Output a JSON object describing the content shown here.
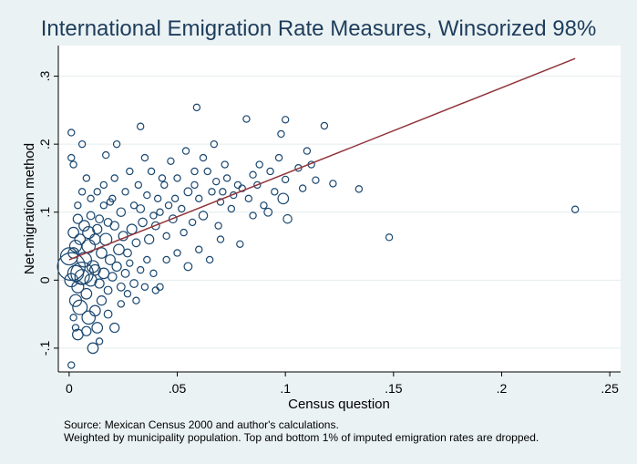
{
  "chart_data": {
    "type": "scatter",
    "title": "International Emigration Rate Measures, Winsorized 98%",
    "xlabel": "Census question",
    "ylabel": "Net-migration method",
    "xlim": [
      -0.005,
      0.255
    ],
    "ylim": [
      -0.135,
      0.345
    ],
    "xticks": [
      0,
      0.05,
      0.1,
      0.15,
      0.2,
      0.25
    ],
    "xtick_labels": [
      "0",
      ".05",
      ".1",
      ".15",
      ".2",
      ".25"
    ],
    "yticks": [
      -0.1,
      0,
      0.1,
      0.2,
      0.3
    ],
    "ytick_labels": [
      "-.1",
      "0",
      ".1",
      ".2",
      ".3"
    ],
    "grid": "horizontal",
    "legend": "none",
    "marker": "hollow circle, size weighted by municipality population",
    "marker_color": "#1a476f",
    "fit_line": {
      "type": "linear",
      "color": "#90353b",
      "x": [
        0,
        0.234
      ],
      "y": [
        0.03,
        0.326
      ]
    },
    "notes": [
      "Source: Mexican Census 2000 and author's calculations.",
      "Weighted by municipality population. Top and bottom 1% of imputed emigration rates are dropped."
    ],
    "points": [
      [
        0.234,
        0.104,
        1
      ],
      [
        0.148,
        0.063,
        1
      ],
      [
        0.134,
        0.134,
        1
      ],
      [
        0.122,
        0.142,
        1
      ],
      [
        0.118,
        0.227,
        1
      ],
      [
        0.1,
        0.236,
        1
      ],
      [
        0.098,
        0.215,
        1
      ],
      [
        0.082,
        0.237,
        1
      ],
      [
        0.059,
        0.254,
        1
      ],
      [
        0.054,
        0.19,
        1
      ],
      [
        0.033,
        0.226,
        1
      ],
      [
        0.022,
        0.2,
        1
      ],
      [
        0.017,
        0.184,
        1
      ],
      [
        0.006,
        0.2,
        1
      ],
      [
        0.001,
        0.217,
        1
      ],
      [
        0.001,
        0.18,
        1
      ],
      [
        0.002,
        0.17,
        1
      ],
      [
        0.11,
        0.19,
        1
      ],
      [
        0.106,
        0.165,
        1
      ],
      [
        0.114,
        0.147,
        1
      ],
      [
        0.108,
        0.135,
        1
      ],
      [
        0.112,
        0.17,
        1
      ],
      [
        0.1,
        0.148,
        1
      ],
      [
        0.095,
        0.13,
        1
      ],
      [
        0.088,
        0.17,
        1
      ],
      [
        0.085,
        0.155,
        1
      ],
      [
        0.09,
        0.11,
        1
      ],
      [
        0.101,
        0.09,
        1.3
      ],
      [
        0.099,
        0.12,
        1.6
      ],
      [
        0.092,
        0.1,
        1.2
      ],
      [
        0.085,
        0.095,
        1
      ],
      [
        0.079,
        0.053,
        1
      ],
      [
        0.07,
        0.06,
        1
      ],
      [
        0.069,
        0.08,
        1
      ],
      [
        0.075,
        0.105,
        1
      ],
      [
        0.078,
        0.14,
        1
      ],
      [
        0.072,
        0.17,
        1
      ],
      [
        0.067,
        0.2,
        1
      ],
      [
        0.062,
        0.18,
        1
      ],
      [
        0.058,
        0.16,
        1
      ],
      [
        0.055,
        0.13,
        1.2
      ],
      [
        0.05,
        0.15,
        1
      ],
      [
        0.047,
        0.175,
        1
      ],
      [
        0.044,
        0.14,
        1
      ],
      [
        0.041,
        0.12,
        1
      ],
      [
        0.038,
        0.16,
        1
      ],
      [
        0.035,
        0.18,
        1
      ],
      [
        0.032,
        0.14,
        1
      ],
      [
        0.03,
        0.11,
        1
      ],
      [
        0.028,
        0.16,
        1
      ],
      [
        0.026,
        0.13,
        1
      ],
      [
        0.024,
        0.1,
        1.3
      ],
      [
        0.021,
        0.15,
        1
      ],
      [
        0.019,
        0.115,
        1
      ],
      [
        0.016,
        0.14,
        1
      ],
      [
        0.013,
        0.13,
        1
      ],
      [
        0.01,
        0.12,
        1
      ],
      [
        0.008,
        0.15,
        1
      ],
      [
        0.006,
        0.13,
        1
      ],
      [
        0.004,
        0.11,
        1
      ],
      [
        0.062,
        0.095,
        1.3
      ],
      [
        0.06,
        0.12,
        1
      ],
      [
        0.057,
        0.085,
        1
      ],
      [
        0.053,
        0.07,
        1
      ],
      [
        0.048,
        0.09,
        1.2
      ],
      [
        0.045,
        0.065,
        1
      ],
      [
        0.042,
        0.1,
        1
      ],
      [
        0.04,
        0.08,
        1.2
      ],
      [
        0.037,
        0.06,
        1.4
      ],
      [
        0.034,
        0.085,
        1.3
      ],
      [
        0.031,
        0.055,
        1.2
      ],
      [
        0.029,
        0.075,
        1.5
      ],
      [
        0.027,
        0.04,
        1.2
      ],
      [
        0.025,
        0.065,
        1.4
      ],
      [
        0.023,
        0.045,
        1.6
      ],
      [
        0.021,
        0.08,
        1.3
      ],
      [
        0.019,
        0.03,
        1.5
      ],
      [
        0.017,
        0.06,
        1.8
      ],
      [
        0.015,
        0.04,
        1.6
      ],
      [
        0.013,
        0.075,
        1.4
      ],
      [
        0.011,
        0.02,
        1.8
      ],
      [
        0.009,
        0.05,
        2.0
      ],
      [
        0.007,
        0.03,
        2.2
      ],
      [
        0.005,
        0.06,
        1.6
      ],
      [
        0.003,
        0.01,
        2.4
      ],
      [
        0.002,
        0.04,
        1.6
      ],
      [
        0.001,
        0.0,
        2.0
      ],
      [
        0.004,
        -0.01,
        1.8
      ],
      [
        0.006,
        0.005,
        2.2
      ],
      [
        0.008,
        -0.02,
        1.6
      ],
      [
        0.01,
        0.0,
        1.8
      ],
      [
        0.012,
        0.015,
        1.6
      ],
      [
        0.014,
        -0.005,
        1.4
      ],
      [
        0.016,
        0.01,
        1.6
      ],
      [
        0.018,
        -0.015,
        1.2
      ],
      [
        0.02,
        0.005,
        1.3
      ],
      [
        0.022,
        0.02,
        1.4
      ],
      [
        0.024,
        -0.01,
        1.2
      ],
      [
        0.026,
        0.01,
        1.2
      ],
      [
        0.028,
        0.025,
        1
      ],
      [
        0.03,
        -0.005,
        1.2
      ],
      [
        0.033,
        0.015,
        1
      ],
      [
        0.036,
        0.03,
        1
      ],
      [
        0.039,
        0.01,
        1
      ],
      [
        0.042,
        -0.01,
        1
      ],
      [
        0.045,
        0.03,
        1
      ],
      [
        0.05,
        0.04,
        1
      ],
      [
        0.055,
        0.02,
        1.2
      ],
      [
        0.06,
        0.045,
        1
      ],
      [
        0.065,
        0.03,
        1
      ],
      [
        0.005,
        -0.04,
        2.2
      ],
      [
        0.009,
        -0.055,
        2.0
      ],
      [
        0.003,
        -0.03,
        1.8
      ],
      [
        0.012,
        -0.045,
        1.6
      ],
      [
        0.015,
        -0.03,
        1.4
      ],
      [
        0.018,
        -0.05,
        1.2
      ],
      [
        0.021,
        -0.07,
        1.4
      ],
      [
        0.024,
        -0.035,
        1
      ],
      [
        0.013,
        -0.07,
        1.6
      ],
      [
        0.008,
        -0.075,
        1.4
      ],
      [
        0.004,
        -0.08,
        1.6
      ],
      [
        0.011,
        -0.1,
        1.6
      ],
      [
        0.014,
        -0.09,
        1
      ],
      [
        0.001,
        -0.125,
        1
      ],
      [
        0.003,
        -0.07,
        1
      ],
      [
        0.002,
        -0.055,
        1
      ],
      [
        0.031,
        -0.03,
        1
      ],
      [
        0.027,
        -0.02,
        1
      ],
      [
        0.035,
        -0.01,
        1
      ],
      [
        0.04,
        -0.015,
        1
      ],
      [
        0.002,
        0.07,
        1.6
      ],
      [
        0.004,
        0.09,
        1.4
      ],
      [
        0.007,
        0.08,
        1.6
      ],
      [
        0.01,
        0.095,
        1.2
      ],
      [
        0.012,
        0.06,
        1.6
      ],
      [
        0.003,
        0.05,
        1.8
      ],
      [
        0.001,
        0.02,
        4.2
      ],
      [
        0.0,
        0.035,
        2.6
      ],
      [
        0.006,
        0.01,
        3.4
      ],
      [
        0.014,
        0.09,
        1.2
      ],
      [
        0.016,
        0.11,
        1
      ],
      [
        0.018,
        0.085,
        1.2
      ],
      [
        0.02,
        0.12,
        1
      ],
      [
        0.009,
        0.07,
        1.8
      ],
      [
        0.066,
        0.13,
        1
      ],
      [
        0.07,
        0.115,
        1
      ],
      [
        0.073,
        0.15,
        1
      ],
      [
        0.076,
        0.125,
        1
      ],
      [
        0.08,
        0.135,
        1
      ],
      [
        0.083,
        0.12,
        1
      ],
      [
        0.087,
        0.14,
        1
      ],
      [
        0.093,
        0.16,
        1
      ],
      [
        0.097,
        0.18,
        1
      ],
      [
        0.052,
        0.105,
        1
      ],
      [
        0.049,
        0.12,
        1
      ],
      [
        0.046,
        0.11,
        1
      ],
      [
        0.043,
        0.15,
        1
      ],
      [
        0.039,
        0.095,
        1
      ],
      [
        0.036,
        0.125,
        1
      ],
      [
        0.033,
        0.105,
        1.2
      ],
      [
        0.058,
        0.14,
        1
      ],
      [
        0.064,
        0.16,
        1
      ],
      [
        0.068,
        0.145,
        1
      ],
      [
        0.071,
        0.13,
        1
      ]
    ]
  }
}
